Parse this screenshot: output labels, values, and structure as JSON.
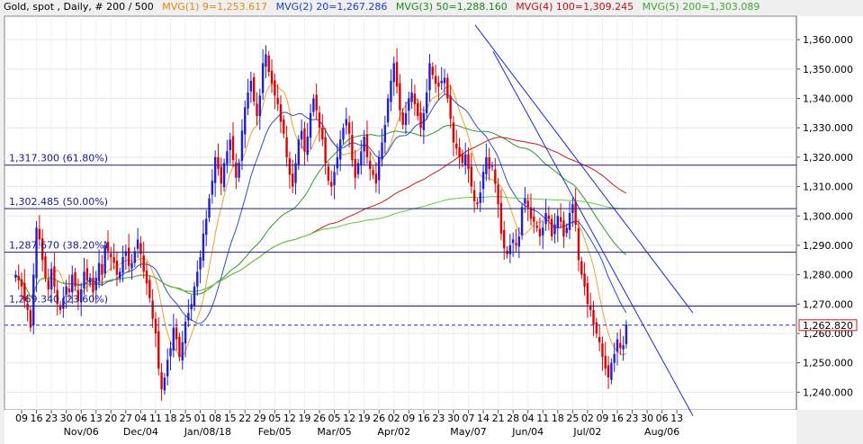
{
  "legend": {
    "instrument": "Gold, spot , Daily, # 200 / 500",
    "mvg1": "MVG(1) 9=1,253.617",
    "mvg2": "MVG(2) 20=1,267.286",
    "mvg3": "MVG(3) 50=1,288.160",
    "mvg4": "MVG(4) 100=1,309.245",
    "mvg5": "MVG(5) 200=1,303.089"
  },
  "colors": {
    "up": "#1f1fd6",
    "down": "#e00000",
    "mvg1": "#f0a030",
    "mvg2": "#2a4fd0",
    "mvg3": "#2a9a2a",
    "mvg4": "#d01818",
    "mvg5": "#5ad040",
    "fib": "#1a1a8a",
    "trend": "#1a2ad0",
    "price_box": "#d01818"
  },
  "price_label": "1,262.820",
  "chart_data": {
    "type": "candlestick",
    "ylim": [
      1234,
      1368
    ],
    "y_ticks": [
      "1,240.000",
      "1,250.000",
      "1,260.000",
      "1,270.000",
      "1,280.000",
      "1,290.000",
      "1,300.000",
      "1,310.000",
      "1,320.000",
      "1,330.000",
      "1,340.000",
      "1,350.000",
      "1,360.000"
    ],
    "y_tick_values": [
      1240,
      1250,
      1260,
      1270,
      1280,
      1290,
      1300,
      1310,
      1320,
      1330,
      1340,
      1350,
      1360
    ],
    "x_ticks": [
      "09",
      "16",
      "23",
      "30",
      "06",
      "13",
      "20",
      "27",
      "04",
      "11",
      "18",
      "25",
      "01",
      "08",
      "15",
      "22",
      "29",
      "05",
      "12",
      "19",
      "26",
      "05",
      "12",
      "19",
      "26",
      "02",
      "09",
      "16",
      "23",
      "30",
      "07",
      "14",
      "21",
      "28",
      "04",
      "11",
      "18",
      "25",
      "02",
      "09",
      "16",
      "23",
      "30",
      "06",
      "13"
    ],
    "x_month_labels": [
      {
        "label": "Nov/06",
        "tick_index": 4
      },
      {
        "label": "Dec/04",
        "tick_index": 8
      },
      {
        "label": "Jan/08/18",
        "tick_index": 12.5
      },
      {
        "label": "Feb/05",
        "tick_index": 17
      },
      {
        "label": "Mar/05",
        "tick_index": 21
      },
      {
        "label": "Apr/02",
        "tick_index": 25
      },
      {
        "label": "May/07",
        "tick_index": 30
      },
      {
        "label": "Jun/04",
        "tick_index": 34
      },
      {
        "label": "Jul/02",
        "tick_index": 38
      },
      {
        "label": "Aug/06",
        "tick_index": 43
      }
    ],
    "fib_levels": [
      {
        "label": "1,317.300 (61.80%)",
        "value": 1317.3
      },
      {
        "label": "1,302.485 (50.00%)",
        "value": 1302.485
      },
      {
        "label": "1,287.670 (38.20%)",
        "value": 1287.67
      },
      {
        "label": "1,269.340 (23.60%)",
        "value": 1269.34
      }
    ],
    "current_price": 1262.82,
    "closes": [
      1280,
      1278,
      1276,
      1271,
      1268,
      1262,
      1280,
      1296,
      1292,
      1285,
      1279,
      1275,
      1282,
      1276,
      1270,
      1268,
      1272,
      1276,
      1274,
      1280,
      1276,
      1271,
      1275,
      1281,
      1278,
      1279,
      1274,
      1279,
      1284,
      1280,
      1290,
      1288,
      1286,
      1284,
      1280,
      1281,
      1286,
      1288,
      1283,
      1284,
      1288,
      1292,
      1287,
      1281,
      1277,
      1272,
      1265,
      1260,
      1248,
      1241,
      1245,
      1251,
      1255,
      1262,
      1258,
      1252,
      1257,
      1264,
      1267,
      1270,
      1276,
      1281,
      1286,
      1294,
      1299,
      1306,
      1312,
      1320,
      1316,
      1311,
      1318,
      1322,
      1326,
      1319,
      1313,
      1318,
      1329,
      1337,
      1342,
      1346,
      1339,
      1334,
      1341,
      1352,
      1355,
      1349,
      1345,
      1341,
      1338,
      1332,
      1328,
      1320,
      1314,
      1310,
      1318,
      1326,
      1329,
      1322,
      1327,
      1335,
      1340,
      1336,
      1330,
      1326,
      1318,
      1312,
      1310,
      1315,
      1320,
      1326,
      1330,
      1333,
      1328,
      1319,
      1313,
      1318,
      1322,
      1327,
      1320,
      1316,
      1314,
      1311,
      1320,
      1325,
      1331,
      1340,
      1346,
      1352,
      1344,
      1336,
      1331,
      1335,
      1340,
      1342,
      1338,
      1334,
      1330,
      1335,
      1342,
      1352,
      1348,
      1345,
      1344,
      1346,
      1347,
      1340,
      1333,
      1325,
      1323,
      1320,
      1318,
      1321,
      1316,
      1310,
      1305,
      1304,
      1308,
      1315,
      1320,
      1316,
      1317,
      1311,
      1304,
      1294,
      1289,
      1287,
      1290,
      1292,
      1290,
      1293,
      1303,
      1306,
      1303,
      1299,
      1298,
      1296,
      1293,
      1296,
      1301,
      1299,
      1293,
      1297,
      1300,
      1298,
      1293,
      1296,
      1301,
      1304,
      1297,
      1285,
      1280,
      1276,
      1270,
      1268,
      1263,
      1260,
      1257,
      1252,
      1248,
      1245,
      1250,
      1253,
      1258,
      1255,
      1256,
      1263
    ]
  }
}
